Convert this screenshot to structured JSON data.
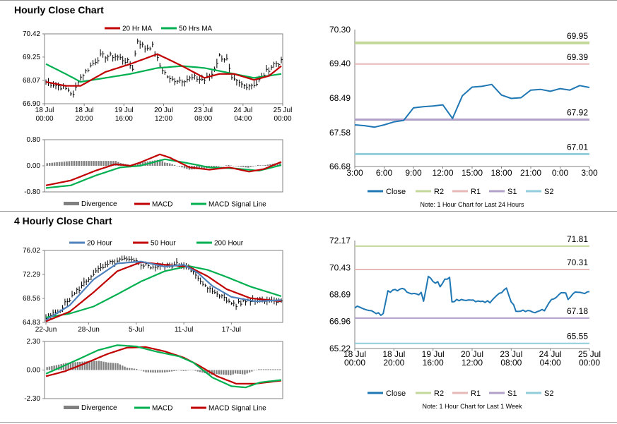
{
  "titles": {
    "hourly": "Hourly Close Chart",
    "four_hourly": "4 Hourly Close Chart"
  },
  "chart_data": [
    {
      "id": "hourly_price",
      "type": "line",
      "title": "",
      "ylim": [
        66.9,
        70.42
      ],
      "yticks": [
        "70.42",
        "69.25",
        "68.07",
        "66.90"
      ],
      "ytick_values": [
        70.42,
        69.25,
        68.07,
        66.9
      ],
      "xtick_labels": [
        [
          "18 Jul",
          "00:00"
        ],
        [
          "18 Jul",
          "20:00"
        ],
        [
          "19 Jul",
          "16:00"
        ],
        [
          "20 Jul",
          "12:00"
        ],
        [
          "23 Jul",
          "08:00"
        ],
        [
          "24 Jul",
          "04:00"
        ],
        [
          "25 Jul",
          "00:00"
        ]
      ],
      "legend": [
        "20 Hr MA",
        "50 Hrs MA"
      ],
      "n": 96,
      "close_anchors": [
        [
          0,
          68.0
        ],
        [
          5,
          67.8
        ],
        [
          9,
          67.6
        ],
        [
          11,
          67.3
        ],
        [
          13,
          68.1
        ],
        [
          18,
          68.8
        ],
        [
          22,
          69.3
        ],
        [
          28,
          69.3
        ],
        [
          33,
          69.0
        ],
        [
          35,
          68.7
        ],
        [
          37,
          70.1
        ],
        [
          40,
          69.7
        ],
        [
          43,
          69.8
        ],
        [
          46,
          68.8
        ],
        [
          50,
          68.1
        ],
        [
          55,
          68.1
        ],
        [
          60,
          68.2
        ],
        [
          64,
          68.1
        ],
        [
          67,
          68.4
        ],
        [
          70,
          69.3
        ],
        [
          73,
          69.1
        ],
        [
          75,
          68.1
        ],
        [
          80,
          67.8
        ],
        [
          85,
          67.9
        ],
        [
          88,
          68.4
        ],
        [
          92,
          68.9
        ],
        [
          95,
          69.0
        ]
      ],
      "ma20_anchors": [
        [
          0,
          68.0
        ],
        [
          8,
          67.8
        ],
        [
          14,
          67.8
        ],
        [
          24,
          68.5
        ],
        [
          34,
          68.9
        ],
        [
          45,
          69.4
        ],
        [
          55,
          68.8
        ],
        [
          64,
          68.2
        ],
        [
          70,
          68.4
        ],
        [
          76,
          68.4
        ],
        [
          84,
          68.1
        ],
        [
          90,
          68.3
        ],
        [
          95,
          68.8
        ]
      ],
      "ma50_anchors": [
        [
          0,
          68.9
        ],
        [
          8,
          68.4
        ],
        [
          14,
          68.0
        ],
        [
          24,
          68.2
        ],
        [
          34,
          68.4
        ],
        [
          45,
          68.7
        ],
        [
          55,
          68.8
        ],
        [
          64,
          68.7
        ],
        [
          72,
          68.5
        ],
        [
          84,
          68.2
        ],
        [
          95,
          68.4
        ]
      ]
    },
    {
      "id": "hourly_macd",
      "type": "line",
      "ylim": [
        -0.8,
        0.8
      ],
      "yticks": [
        "0.80",
        "0.00",
        "-0.80"
      ],
      "ytick_values": [
        0.8,
        0.0,
        -0.8
      ],
      "legend": [
        "Divergence",
        "MACD",
        "MACD Signal Line"
      ],
      "n": 96,
      "macd_anchors": [
        [
          0,
          -0.6
        ],
        [
          10,
          -0.45
        ],
        [
          20,
          -0.15
        ],
        [
          28,
          0.05
        ],
        [
          34,
          0.0
        ],
        [
          38,
          0.1
        ],
        [
          46,
          0.35
        ],
        [
          50,
          0.25
        ],
        [
          58,
          -0.05
        ],
        [
          66,
          -0.12
        ],
        [
          74,
          -0.05
        ],
        [
          82,
          -0.18
        ],
        [
          88,
          -0.1
        ],
        [
          95,
          0.12
        ]
      ],
      "signal_anchors": [
        [
          0,
          -0.68
        ],
        [
          10,
          -0.6
        ],
        [
          20,
          -0.3
        ],
        [
          30,
          -0.05
        ],
        [
          38,
          0.0
        ],
        [
          48,
          0.2
        ],
        [
          56,
          0.1
        ],
        [
          66,
          -0.05
        ],
        [
          76,
          -0.08
        ],
        [
          86,
          -0.15
        ],
        [
          95,
          0.02
        ]
      ]
    },
    {
      "id": "hourly_pivots",
      "type": "line",
      "ylim": [
        66.68,
        70.3
      ],
      "yticks": [
        "70.30",
        "69.40",
        "68.49",
        "67.58",
        "66.68"
      ],
      "ytick_values": [
        70.3,
        69.4,
        68.49,
        67.58,
        66.68
      ],
      "xtick_labels": [
        "3:00",
        "6:00",
        "9:00",
        "12:00",
        "15:00",
        "18:00",
        "21:00",
        "0:00",
        "3:00"
      ],
      "legend": [
        "Close",
        "R2",
        "R1",
        "S1",
        "S2"
      ],
      "note": "Note: 1 Hour Chart for Last 24 Hours",
      "levels": {
        "R2": 69.95,
        "R1": 69.39,
        "S1": 67.92,
        "S2": 67.01
      },
      "level_labels": {
        "R2": "69.95",
        "R1": "69.39",
        "S1": "67.92",
        "S2": "67.01"
      },
      "close": [
        67.78,
        67.76,
        67.72,
        67.78,
        67.86,
        67.9,
        68.23,
        68.26,
        68.28,
        68.31,
        67.95,
        68.55,
        68.78,
        68.8,
        68.85,
        68.57,
        68.48,
        68.5,
        68.7,
        68.72,
        68.67,
        68.74,
        68.7,
        68.82,
        68.77
      ]
    },
    {
      "id": "four_hourly_price",
      "type": "line",
      "ylim": [
        64.83,
        76.02
      ],
      "yticks": [
        "76.02",
        "72.29",
        "68.56",
        "64.83"
      ],
      "ytick_values": [
        76.02,
        72.29,
        68.56,
        64.83
      ],
      "xtick_labels": [
        "22-Jun",
        "28-Jun",
        "5-Jul",
        "11-Jul",
        "17-Jul"
      ],
      "legend": [
        "20 Hour",
        "50 Hour",
        "200 Hour"
      ],
      "n": 100,
      "close_anchors": [
        [
          0,
          65.5
        ],
        [
          5,
          66.5
        ],
        [
          10,
          68.5
        ],
        [
          15,
          70.5
        ],
        [
          20,
          72.5
        ],
        [
          27,
          74.0
        ],
        [
          33,
          74.6
        ],
        [
          38,
          74.2
        ],
        [
          44,
          73.5
        ],
        [
          50,
          73.6
        ],
        [
          56,
          73.9
        ],
        [
          60,
          73.6
        ],
        [
          64,
          71.5
        ],
        [
          68,
          70.0
        ],
        [
          72,
          69.5
        ],
        [
          76,
          68.2
        ],
        [
          80,
          67.6
        ],
        [
          85,
          68.3
        ],
        [
          90,
          68.5
        ],
        [
          95,
          68.2
        ],
        [
          99,
          68.4
        ]
      ],
      "ma20_anchors": [
        [
          0,
          65.2
        ],
        [
          10,
          67.5
        ],
        [
          20,
          71.5
        ],
        [
          30,
          74.0
        ],
        [
          40,
          74.3
        ],
        [
          50,
          73.5
        ],
        [
          58,
          73.8
        ],
        [
          64,
          72.5
        ],
        [
          70,
          70.5
        ],
        [
          78,
          68.8
        ],
        [
          88,
          68.1
        ],
        [
          99,
          68.3
        ]
      ],
      "ma50_anchors": [
        [
          0,
          65.0
        ],
        [
          10,
          66.5
        ],
        [
          20,
          69.5
        ],
        [
          30,
          72.8
        ],
        [
          40,
          74.2
        ],
        [
          50,
          73.8
        ],
        [
          60,
          73.5
        ],
        [
          68,
          72.0
        ],
        [
          76,
          70.0
        ],
        [
          86,
          68.6
        ],
        [
          99,
          68.1
        ]
      ],
      "ma200_anchors": [
        [
          0,
          65.6
        ],
        [
          10,
          66.2
        ],
        [
          20,
          67.3
        ],
        [
          30,
          69.2
        ],
        [
          40,
          71.2
        ],
        [
          50,
          72.8
        ],
        [
          60,
          73.6
        ],
        [
          68,
          73.0
        ],
        [
          76,
          71.9
        ],
        [
          86,
          70.4
        ],
        [
          99,
          68.9
        ]
      ]
    },
    {
      "id": "four_hourly_macd",
      "type": "line",
      "ylim": [
        -2.3,
        2.3
      ],
      "yticks": [
        "2.30",
        "0.00",
        "-2.30"
      ],
      "ytick_values": [
        2.3,
        0.0,
        -2.3
      ],
      "legend": [
        "Divergence",
        "MACD",
        "MACD Signal Line"
      ],
      "n": 100,
      "macd_anchors": [
        [
          0,
          -0.3
        ],
        [
          6,
          0.2
        ],
        [
          14,
          0.9
        ],
        [
          22,
          1.6
        ],
        [
          30,
          2.0
        ],
        [
          38,
          1.9
        ],
        [
          46,
          1.5
        ],
        [
          56,
          1.1
        ],
        [
          62,
          0.6
        ],
        [
          70,
          -0.6
        ],
        [
          78,
          -1.3
        ],
        [
          84,
          -1.4
        ],
        [
          90,
          -1.0
        ],
        [
          99,
          -0.8
        ]
      ],
      "signal_anchors": [
        [
          0,
          -0.5
        ],
        [
          8,
          -0.1
        ],
        [
          16,
          0.5
        ],
        [
          26,
          1.3
        ],
        [
          34,
          1.8
        ],
        [
          42,
          1.85
        ],
        [
          50,
          1.5
        ],
        [
          58,
          1.0
        ],
        [
          64,
          0.4
        ],
        [
          72,
          -0.5
        ],
        [
          80,
          -1.1
        ],
        [
          88,
          -1.1
        ],
        [
          99,
          -0.85
        ]
      ]
    },
    {
      "id": "four_hourly_pivots",
      "type": "line",
      "ylim": [
        65.22,
        72.17
      ],
      "yticks": [
        "72.17",
        "70.43",
        "68.69",
        "66.96",
        "65.22"
      ],
      "ytick_values": [
        72.17,
        70.43,
        68.69,
        66.96,
        65.22
      ],
      "xtick_labels": [
        [
          "18 Jul",
          "00:00"
        ],
        [
          "18 Jul",
          "20:00"
        ],
        [
          "19 Jul",
          "16:00"
        ],
        [
          "20 Jul",
          "12:00"
        ],
        [
          "23 Jul",
          "08:00"
        ],
        [
          "24 Jul",
          "04:00"
        ],
        [
          "25 Jul",
          "00:00"
        ]
      ],
      "legend": [
        "Close",
        "R2",
        "R1",
        "S1",
        "S2"
      ],
      "note": "Note: 1 Hour Chart for Last 1 Week",
      "levels": {
        "R2": 71.81,
        "R1": 70.31,
        "S1": 67.18,
        "S2": 65.55
      },
      "level_labels": {
        "R2": "71.81",
        "R1": "70.31",
        "S1": "67.18",
        "S2": "65.55"
      },
      "n": 100,
      "close_anchors": [
        [
          0,
          67.9
        ],
        [
          5,
          67.7
        ],
        [
          10,
          67.5
        ],
        [
          12,
          67.4
        ],
        [
          14,
          68.9
        ],
        [
          20,
          69.0
        ],
        [
          25,
          68.7
        ],
        [
          28,
          68.8
        ],
        [
          29,
          68.2
        ],
        [
          31,
          69.9
        ],
        [
          33,
          69.5
        ],
        [
          35,
          69.5
        ],
        [
          36,
          69.2
        ],
        [
          38,
          69.6
        ],
        [
          40,
          69.9
        ],
        [
          41,
          68.3
        ],
        [
          46,
          68.3
        ],
        [
          52,
          68.3
        ],
        [
          57,
          68.2
        ],
        [
          61,
          68.7
        ],
        [
          64,
          69.1
        ],
        [
          66,
          68.3
        ],
        [
          68,
          67.6
        ],
        [
          72,
          67.6
        ],
        [
          76,
          67.6
        ],
        [
          80,
          67.7
        ],
        [
          82,
          68.2
        ],
        [
          86,
          68.7
        ],
        [
          89,
          68.8
        ],
        [
          90,
          68.4
        ],
        [
          93,
          68.9
        ],
        [
          96,
          68.7
        ],
        [
          99,
          68.8
        ]
      ]
    }
  ],
  "colors": {
    "red": "#C00000",
    "green": "#00B050",
    "blue_line": "#1F77B4",
    "ma20_4h": "#4F81BD",
    "r2": "#C4D79B",
    "r1": "#E6B8B7",
    "s1": "#B1A0C7",
    "s2": "#92CDDC",
    "div_bar": "#808080"
  }
}
